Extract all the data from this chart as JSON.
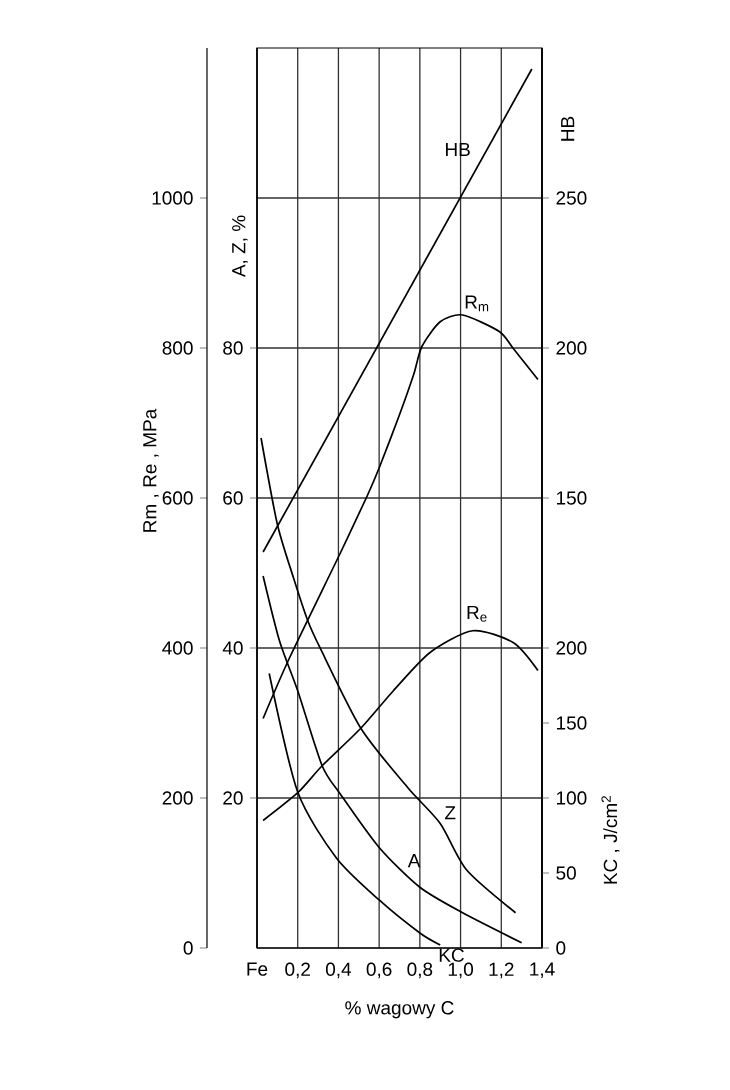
{
  "chart_data": [
    {
      "type": "line",
      "xlabel": "% wagowy C",
      "ylabel": "Rm , Re , MPa",
      "y2label": "A, Z, %",
      "y3label": "HB",
      "xlim": [
        0,
        1.4
      ],
      "xticks": [
        {
          "value": 0,
          "label": "Fe"
        },
        {
          "value": 0.2,
          "label": "0,2"
        },
        {
          "value": 0.4,
          "label": "0,4"
        },
        {
          "value": 0.6,
          "label": "0,6"
        },
        {
          "value": 0.8,
          "label": "0,8"
        },
        {
          "value": 1.0,
          "label": "1,0"
        },
        {
          "value": 1.2,
          "label": "1,2"
        },
        {
          "value": 1.4,
          "label": "1,4"
        }
      ],
      "ylim": [
        0,
        1200
      ],
      "yticks": [
        0,
        200,
        400,
        600,
        800,
        1000
      ],
      "y2lim": [
        0,
        120
      ],
      "y2ticks": [
        20,
        40,
        60,
        80
      ],
      "y3lim": [
        0,
        300
      ],
      "y3ticks": [
        150,
        200,
        250
      ],
      "grid": true,
      "series": [
        {
          "name": "R$_{m}$",
          "color": "#000000",
          "x": [
            0.03,
            0.16,
            0.41,
            0.54,
            0.6,
            0.7,
            0.77,
            0.81,
            0.9,
            1.01,
            1.19,
            1.26,
            1.38
          ],
          "values": [
            306,
            387,
            527,
            602,
            640,
            711,
            765,
            802,
            835,
            844,
            822,
            799,
            758
          ]
        },
        {
          "name": "R$_{e}$",
          "color": "#000000",
          "x": [
            0.03,
            0.2,
            0.32,
            0.51,
            0.67,
            0.85,
            1.06,
            1.26,
            1.38
          ],
          "values": [
            170,
            207,
            243,
            293,
            343,
            394,
            423,
            407,
            370
          ]
        },
        {
          "name": "HB",
          "color": "#000000",
          "axis": "y3",
          "x": [
            0.03,
            1.35
          ],
          "values": [
            132,
            293
          ]
        },
        {
          "name": "A",
          "color": "#000000",
          "axis": "y2",
          "x": [
            0.03,
            0.11,
            0.2,
            0.32,
            0.41,
            0.6,
            0.8,
            1.01,
            1.3
          ],
          "values": [
            49.6,
            41,
            34.3,
            24.3,
            20.5,
            13.4,
            8.1,
            4.7,
            0.7
          ]
        },
        {
          "name": "Z",
          "color": "#000000",
          "axis": "y2",
          "x": [
            0.02,
            0.1,
            0.18,
            0.25,
            0.31,
            0.51,
            0.74,
            0.9,
            1.03,
            1.27
          ],
          "values": [
            68,
            56.5,
            49.3,
            43.6,
            40,
            29.3,
            21.4,
            16.6,
            10.4,
            4.7
          ]
        }
      ]
    },
    {
      "type": "line",
      "ylabel": "KC , J/cm$^{2}$",
      "tick_labels": "y",
      "xlim": [
        0,
        1.4
      ],
      "ylim": [
        0,
        600
      ],
      "yticks": [
        0,
        50,
        100,
        150,
        200
      ],
      "series": [
        {
          "name": "KC",
          "color": "#000000",
          "x": [
            0.06,
            0.2,
            0.39,
            0.6,
            0.8,
            0.9
          ],
          "values": [
            183,
            104,
            60,
            32,
            10,
            2
          ]
        }
      ]
    }
  ]
}
